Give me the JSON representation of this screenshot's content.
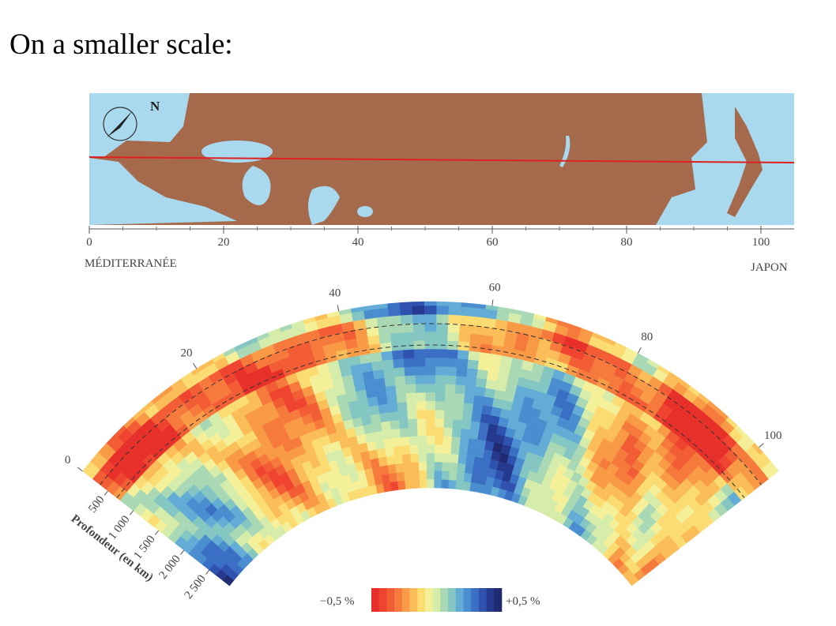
{
  "header": {
    "title": "On a smaller scale:"
  },
  "map": {
    "north": "N",
    "ticks": [
      0,
      20,
      40,
      60,
      80,
      100
    ],
    "left_label": "MÉDITERRANÉE",
    "right_label": "JAPON"
  },
  "section": {
    "angle_ticks": [
      0,
      20,
      40,
      60,
      80,
      100
    ],
    "depth_ticks": [
      "500",
      "1 000",
      "1 500",
      "2 000",
      "2 500"
    ],
    "depth_label": "Profondeur (en km)"
  },
  "colorbar": {
    "min_label": "−0,5 %",
    "max_label": "+0,5 %"
  }
}
